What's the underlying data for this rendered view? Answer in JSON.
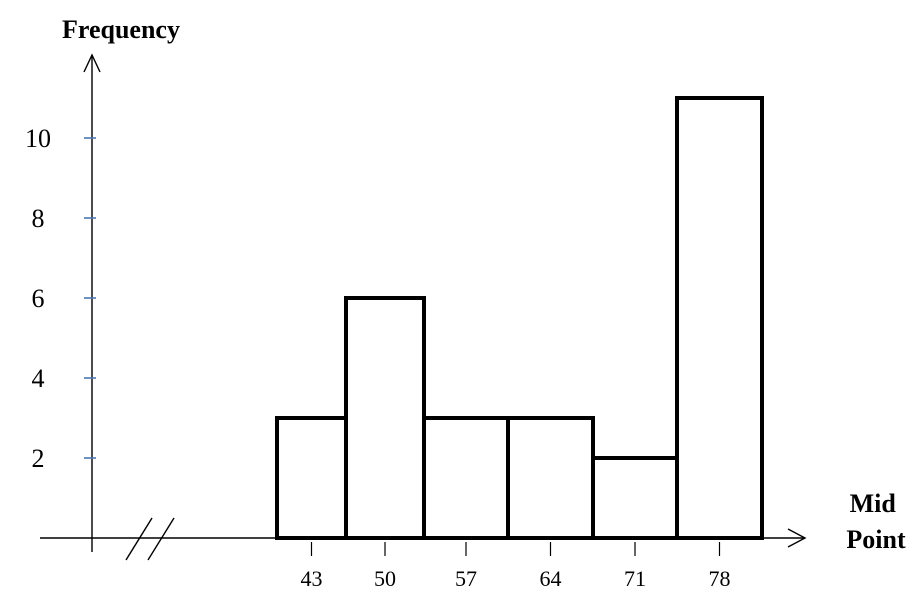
{
  "chart_data": {
    "type": "bar",
    "title": "",
    "xlabel": "Mid Point",
    "xlabel_lines": [
      "Mid",
      "Point"
    ],
    "ylabel": "Frequency",
    "categories": [
      "43",
      "50",
      "57",
      "64",
      "71",
      "78"
    ],
    "values": [
      3,
      6,
      3,
      3,
      2,
      11
    ],
    "y_ticks": [
      "2",
      "4",
      "6",
      "8",
      "10"
    ],
    "ylim": [
      0,
      12
    ],
    "grid": false,
    "axis_break_on_x": true,
    "bar_fill": "#ffffff",
    "bar_stroke": "#000000",
    "y_tick_mark_color": "#4a78b0"
  }
}
